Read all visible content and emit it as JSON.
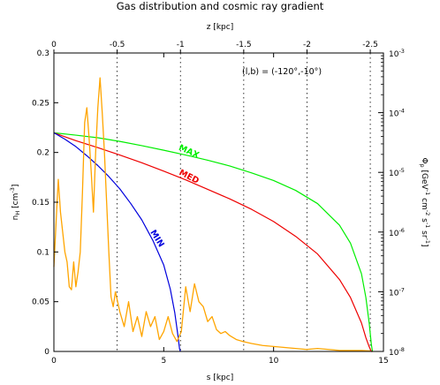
{
  "chart_data": {
    "type": "line",
    "title": "Gas distribution and cosmic ray gradient",
    "xlabel": "s [kpc]",
    "x_top_label": "z [kpc]",
    "ylabel": "n_H [cm^-3]",
    "ylabel_right": "Φ_p [GeV^-1 cm^-2 s^-1 sr^-1]",
    "annotation": "(l,b) = (-120°,-10°)",
    "xlim": [
      0,
      15
    ],
    "ylim": [
      0,
      0.3
    ],
    "y2lim": [
      1e-08,
      0.001
    ],
    "y2_scale": "log",
    "x_ticks": [
      0,
      5,
      10,
      15
    ],
    "x_tick_labels": [
      "0",
      "5",
      "10",
      "15"
    ],
    "y_ticks": [
      0,
      0.05,
      0.1,
      0.15,
      0.2,
      0.25,
      0.3
    ],
    "y_tick_labels": [
      "0",
      "0.05",
      "0.1",
      "0.15",
      "0.2",
      "0.25",
      "0.3"
    ],
    "x_top_ticks": [
      0,
      2.88,
      5.76,
      8.64,
      11.52,
      14.4
    ],
    "x_top_tick_labels": [
      "0",
      "-0.5",
      "-1",
      "-1.5",
      "-2",
      "-2.5"
    ],
    "y2_tick_labels": [
      "10^-3",
      "10^-4",
      "10^-5",
      "10^-6",
      "10^-7",
      "10^-8"
    ],
    "y2_tick_exponents": [
      -3,
      -4,
      -5,
      -6,
      -7,
      -8
    ],
    "vertical_dotted_lines_s": [
      2.88,
      5.76,
      8.64,
      11.52,
      14.4
    ],
    "series": [
      {
        "name": "MAX",
        "color": "#00ee00",
        "axis": "right",
        "x": [
          0,
          1,
          2,
          3,
          4,
          5,
          6,
          7,
          8,
          9,
          10,
          11,
          12,
          13,
          13.5,
          14,
          14.2,
          14.35,
          14.45,
          14.5
        ],
        "y": [
          4.6e-05,
          4.2e-05,
          3.8e-05,
          3.3e-05,
          2.8e-05,
          2.35e-05,
          1.95e-05,
          1.6e-05,
          1.28e-05,
          9.8e-06,
          7.3e-06,
          5e-06,
          3e-06,
          1.3e-06,
          6.5e-07,
          2e-07,
          8e-08,
          3e-08,
          1.3e-08,
          1e-08
        ]
      },
      {
        "name": "MED",
        "color": "#ee0000",
        "axis": "right",
        "x": [
          0,
          1,
          2,
          3,
          4,
          5,
          6,
          7,
          8,
          9,
          10,
          11,
          12,
          13,
          13.5,
          14,
          14.2,
          14.35,
          14.45,
          14.5
        ],
        "y": [
          4.6e-05,
          3.4e-05,
          2.6e-05,
          1.95e-05,
          1.45e-05,
          1.05e-05,
          7.5e-06,
          5.2e-06,
          3.6e-06,
          2.4e-06,
          1.5e-06,
          8.5e-07,
          4.3e-07,
          1.6e-07,
          8e-08,
          3e-08,
          1.7e-08,
          1.2e-08,
          1e-08,
          1e-08
        ]
      },
      {
        "name": "MIN",
        "color": "#0000dd",
        "axis": "right",
        "x": [
          0,
          0.5,
          1,
          1.5,
          2,
          2.5,
          3,
          3.5,
          4,
          4.5,
          5,
          5.3,
          5.5,
          5.65,
          5.72,
          5.76
        ],
        "y": [
          4.6e-05,
          3.6e-05,
          2.7e-05,
          1.9e-05,
          1.3e-05,
          8.5e-06,
          5.3e-06,
          3e-06,
          1.6e-06,
          7.3e-07,
          2.8e-07,
          1.1e-07,
          4.5e-08,
          1.8e-08,
          1.1e-08,
          1e-08
        ]
      },
      {
        "name": "n_H",
        "color": "#ffa500",
        "axis": "left",
        "x": [
          0,
          0.1,
          0.2,
          0.3,
          0.4,
          0.5,
          0.6,
          0.7,
          0.8,
          0.9,
          1.0,
          1.1,
          1.2,
          1.3,
          1.4,
          1.5,
          1.6,
          1.7,
          1.8,
          1.9,
          2.0,
          2.1,
          2.2,
          2.3,
          2.4,
          2.5,
          2.6,
          2.7,
          2.8,
          2.9,
          3.0,
          3.2,
          3.4,
          3.6,
          3.8,
          4.0,
          4.2,
          4.4,
          4.6,
          4.8,
          5.0,
          5.2,
          5.4,
          5.6,
          5.8,
          6.0,
          6.2,
          6.4,
          6.6,
          6.8,
          7.0,
          7.2,
          7.4,
          7.6,
          7.8,
          8.0,
          8.3,
          8.6,
          9.0,
          9.5,
          10.0,
          10.5,
          11.0,
          11.5,
          12.0,
          12.5,
          13.0,
          13.5,
          14.0,
          14.4
        ],
        "y": [
          0.085,
          0.13,
          0.173,
          0.14,
          0.12,
          0.1,
          0.09,
          0.065,
          0.062,
          0.09,
          0.065,
          0.08,
          0.1,
          0.16,
          0.23,
          0.245,
          0.215,
          0.18,
          0.14,
          0.2,
          0.245,
          0.275,
          0.24,
          0.2,
          0.15,
          0.1,
          0.055,
          0.045,
          0.06,
          0.05,
          0.04,
          0.025,
          0.05,
          0.02,
          0.035,
          0.015,
          0.04,
          0.025,
          0.035,
          0.012,
          0.02,
          0.035,
          0.018,
          0.01,
          0.02,
          0.065,
          0.04,
          0.068,
          0.05,
          0.045,
          0.03,
          0.035,
          0.022,
          0.018,
          0.02,
          0.016,
          0.012,
          0.01,
          0.008,
          0.006,
          0.005,
          0.004,
          0.003,
          0.002,
          0.003,
          0.002,
          0.001,
          0.001,
          0.001,
          0.0005
        ]
      }
    ]
  }
}
